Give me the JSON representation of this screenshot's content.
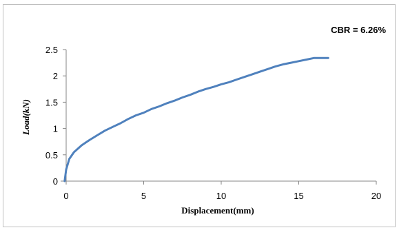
{
  "chart_data": {
    "type": "line",
    "annotation": "CBR = 6.26%",
    "xlabel": "Displacement(mm)",
    "ylabel": "Load(kN)",
    "xlim": [
      0,
      20
    ],
    "ylim": [
      0,
      2.5
    ],
    "x_ticks": [
      "0",
      "5",
      "10",
      "15",
      "20"
    ],
    "y_ticks": [
      "0",
      "0.5",
      "1",
      "1.5",
      "2",
      "2.5"
    ],
    "grid": false,
    "legend": "none",
    "line_color": "#4f81bd",
    "series": [
      {
        "x": [
          -0.1,
          0.0,
          0.2,
          0.5,
          1.0,
          1.5,
          2.0,
          2.5,
          3.0,
          3.5,
          4.0,
          4.5,
          5.0,
          5.5,
          6.0,
          6.5,
          7.0,
          7.5,
          8.0,
          8.5,
          9.0,
          9.5,
          10.0,
          10.5,
          11.0,
          11.5,
          12.0,
          12.5,
          13.0,
          13.5,
          14.0,
          14.5,
          15.0,
          15.5,
          16.0,
          16.5,
          16.9
        ],
        "y": [
          0.0,
          0.22,
          0.42,
          0.55,
          0.68,
          0.78,
          0.87,
          0.96,
          1.03,
          1.1,
          1.18,
          1.25,
          1.3,
          1.37,
          1.42,
          1.48,
          1.53,
          1.59,
          1.64,
          1.7,
          1.75,
          1.79,
          1.84,
          1.88,
          1.93,
          1.98,
          2.03,
          2.08,
          2.13,
          2.18,
          2.22,
          2.25,
          2.28,
          2.31,
          2.34,
          2.34,
          2.34
        ]
      }
    ]
  }
}
